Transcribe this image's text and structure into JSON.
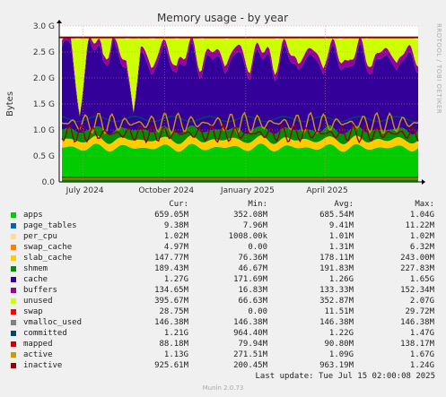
{
  "chart_data": {
    "type": "area",
    "title": "Memory usage - by year",
    "ylabel": "Bytes",
    "side_label": "RRDTOOL / TOBI OETIKER",
    "ylim": [
      0,
      3.0
    ],
    "y_unit": "G",
    "y_ticks": [
      "0.0",
      "0.5 G",
      "1.0 G",
      "1.5 G",
      "2.0 G",
      "2.5 G",
      "3.0 G"
    ],
    "y_tick_values": [
      0,
      0.5,
      1.0,
      1.5,
      2.0,
      2.5,
      3.0
    ],
    "x_range": [
      "2024-06-04",
      "2025-07-15"
    ],
    "x_ticks": [
      "July 2024",
      "October 2024",
      "January 2025",
      "April 2025"
    ],
    "x_tick_dates": [
      "2024-07-01",
      "2024-10-01",
      "2025-01-01",
      "2025-04-01"
    ],
    "grid": true,
    "stacked_series_approx_G": [
      {
        "name": "apps",
        "color": "#00cc00",
        "approx": 0.66
      },
      {
        "name": "slab_cache",
        "color": "#ffcc00",
        "approx": 0.15
      },
      {
        "name": "shmem",
        "color": "#008f00",
        "approx": 0.19
      },
      {
        "name": "cache",
        "color": "#330099",
        "approx": 1.27
      },
      {
        "name": "buffers",
        "color": "#990099",
        "approx": 0.13
      },
      {
        "name": "unused",
        "color": "#ccff00",
        "approx": 0.4
      }
    ],
    "line_series_approx_G": [
      {
        "name": "swap",
        "color": "#ff0000",
        "approx": 0.03
      },
      {
        "name": "committed",
        "color": "#00456f",
        "approx": 1.21
      },
      {
        "name": "mapped",
        "color": "#cc0000",
        "approx": 0.09
      },
      {
        "name": "active",
        "color": "#cc9900",
        "approx": 1.13
      },
      {
        "name": "inactive",
        "color": "#990000",
        "approx": 0.93
      }
    ],
    "total_line_G": 2.78
  },
  "legend": {
    "headers": {
      "cur": "Cur:",
      "min": "Min:",
      "avg": "Avg:",
      "max": "Max:"
    },
    "rows": [
      {
        "name": "apps",
        "color": "#00cc00",
        "cur": "659.05M",
        "min": "352.08M",
        "avg": "685.54M",
        "max": "1.04G"
      },
      {
        "name": "page_tables",
        "color": "#0066b3",
        "cur": "9.38M",
        "min": "7.96M",
        "avg": "9.41M",
        "max": "11.22M"
      },
      {
        "name": "per_cpu",
        "color": "#ffdd99",
        "cur": "1.02M",
        "min": "1008.00k",
        "avg": "1.01M",
        "max": "1.02M"
      },
      {
        "name": "swap_cache",
        "color": "#ff8000",
        "cur": "4.97M",
        "min": "0.00",
        "avg": "1.31M",
        "max": "6.32M"
      },
      {
        "name": "slab_cache",
        "color": "#ffcc00",
        "cur": "147.77M",
        "min": "76.36M",
        "avg": "178.11M",
        "max": "243.00M"
      },
      {
        "name": "shmem",
        "color": "#008f00",
        "cur": "189.43M",
        "min": "46.67M",
        "avg": "191.83M",
        "max": "227.83M"
      },
      {
        "name": "cache",
        "color": "#330099",
        "cur": "1.27G",
        "min": "171.69M",
        "avg": "1.26G",
        "max": "1.65G"
      },
      {
        "name": "buffers",
        "color": "#990099",
        "cur": "134.65M",
        "min": "16.83M",
        "avg": "133.33M",
        "max": "152.34M"
      },
      {
        "name": "unused",
        "color": "#ccff00",
        "cur": "395.67M",
        "min": "66.63M",
        "avg": "352.87M",
        "max": "2.07G"
      },
      {
        "name": "swap",
        "color": "#ff0000",
        "cur": "28.75M",
        "min": "0.00",
        "avg": "11.51M",
        "max": "29.72M"
      },
      {
        "name": "vmalloc_used",
        "color": "#808080",
        "cur": "146.38M",
        "min": "146.38M",
        "avg": "146.38M",
        "max": "146.38M"
      },
      {
        "name": "committed",
        "color": "#00456f",
        "cur": "1.21G",
        "min": "964.40M",
        "avg": "1.22G",
        "max": "1.47G"
      },
      {
        "name": "mapped",
        "color": "#cc0000",
        "cur": "88.18M",
        "min": "79.94M",
        "avg": "90.80M",
        "max": "138.17M"
      },
      {
        "name": "active",
        "color": "#cc9900",
        "cur": "1.13G",
        "min": "271.51M",
        "avg": "1.09G",
        "max": "1.67G"
      },
      {
        "name": "inactive",
        "color": "#990000",
        "cur": "925.61M",
        "min": "200.45M",
        "avg": "963.19M",
        "max": "1.24G"
      }
    ]
  },
  "footer": {
    "last_update": "Last update:  Tue Jul 15 02:00:08 2025",
    "munin": "Munin 2.0.73"
  }
}
